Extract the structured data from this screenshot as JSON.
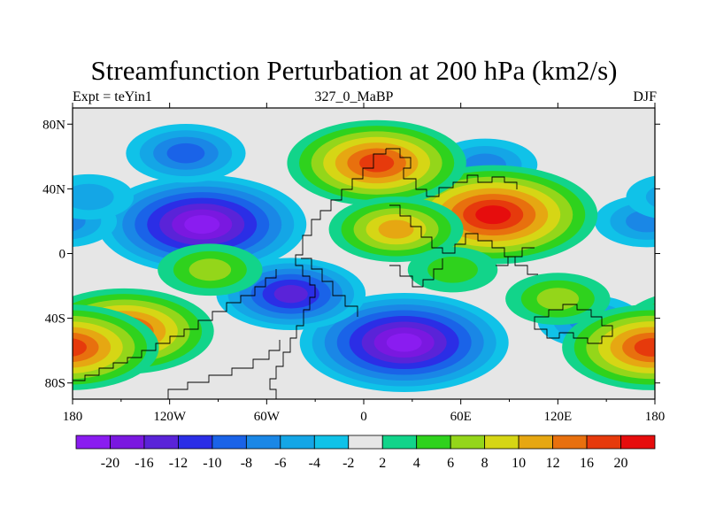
{
  "chart_data": {
    "type": "heatmap",
    "title": "Streamfunction Perturbation at 200 hPa (km2/s)",
    "subtitle_left": "Expt = teYin1",
    "subtitle_center": "327_0_MaBP",
    "subtitle_right": "DJF",
    "x_ticks": [
      {
        "value": -180,
        "label": "180"
      },
      {
        "value": -120,
        "label": "120W"
      },
      {
        "value": -60,
        "label": "60W"
      },
      {
        "value": 0,
        "label": "0"
      },
      {
        "value": 60,
        "label": "60E"
      },
      {
        "value": 120,
        "label": "120E"
      },
      {
        "value": 180,
        "label": "180"
      }
    ],
    "y_ticks": [
      {
        "value": 80,
        "label": "80N"
      },
      {
        "value": 40,
        "label": "40N"
      },
      {
        "value": 0,
        "label": "0"
      },
      {
        "value": -40,
        "label": "40S"
      },
      {
        "value": -80,
        "label": "80S"
      }
    ],
    "xlim": [
      -180,
      180
    ],
    "ylim": [
      -90,
      90
    ],
    "colorbar": {
      "levels": [
        "-20",
        "-16",
        "-12",
        "-10",
        "-8",
        "-6",
        "-4",
        "-2",
        "2",
        "4",
        "6",
        "8",
        "10",
        "12",
        "16",
        "20"
      ],
      "colors": [
        "#8a1cf0",
        "#7a18e0",
        "#5a23d8",
        "#2b2ee6",
        "#1a63e8",
        "#1a87e6",
        "#14a6e6",
        "#10c2e8",
        "#e6e6e6",
        "#12d48a",
        "#2fd21d",
        "#94d61a",
        "#d6d615",
        "#e6a712",
        "#e8700e",
        "#e63a0c",
        "#e60d0d"
      ]
    },
    "features": [
      {
        "label": "Low center",
        "lon": -100,
        "lat": 18,
        "value": -20
      },
      {
        "label": "Low center",
        "lon": 25,
        "lat": -55,
        "value": -20
      },
      {
        "label": "Low center",
        "lon": -45,
        "lat": -25,
        "value": -12
      },
      {
        "label": "Low center",
        "lon": -110,
        "lat": 62,
        "value": -8
      },
      {
        "label": "Low center",
        "lon": 75,
        "lat": 55,
        "value": -6
      },
      {
        "label": "Low center",
        "lon": 175,
        "lat": 20,
        "value": -6
      },
      {
        "label": "Low center",
        "lon": -170,
        "lat": 35,
        "value": -4
      },
      {
        "label": "Low center",
        "lon": 140,
        "lat": -42,
        "value": -6
      },
      {
        "label": "High center",
        "lon": 80,
        "lat": 24,
        "value": 20
      },
      {
        "label": "High center",
        "lon": 8,
        "lat": 56,
        "value": 16
      },
      {
        "label": "High center",
        "lon": -148,
        "lat": -48,
        "value": 16
      },
      {
        "label": "High center",
        "lon": 20,
        "lat": 15,
        "value": 10
      },
      {
        "label": "High center",
        "lon": -95,
        "lat": -10,
        "value": 6
      },
      {
        "label": "High center",
        "lon": 178,
        "lat": -58,
        "value": 16
      },
      {
        "label": "High center",
        "lon": 120,
        "lat": -28,
        "value": 6
      },
      {
        "label": "High center",
        "lon": 55,
        "lat": -10,
        "value": 4
      }
    ]
  }
}
